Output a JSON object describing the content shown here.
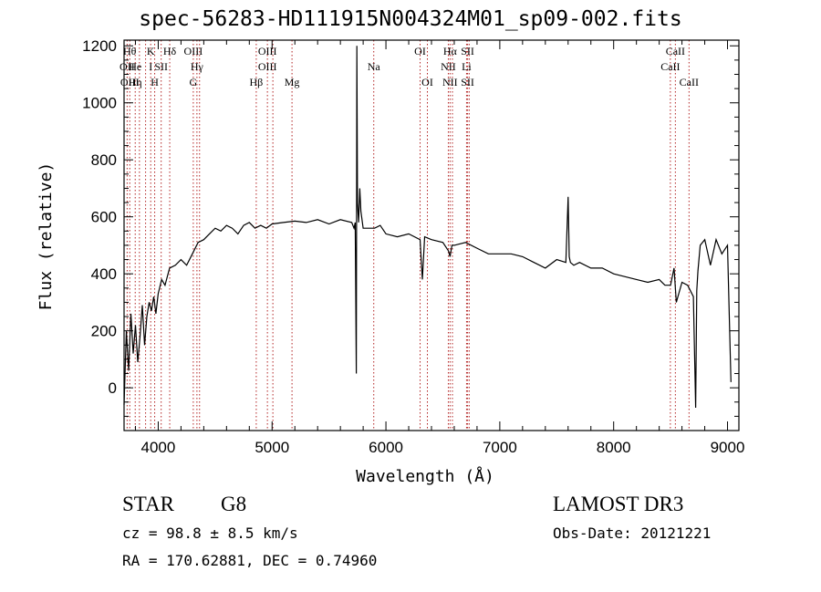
{
  "chart_data": {
    "type": "line",
    "title": "spec-56283-HD111915N004324M01_sp09-002.fits",
    "xlabel": "Wavelength (Å)",
    "ylabel": "Flux (relative)",
    "xlim": [
      3700,
      9100
    ],
    "ylim": [
      -150,
      1220
    ],
    "xticks": [
      "4000",
      "5000",
      "6000",
      "7000",
      "8000",
      "9000"
    ],
    "xtick_values": [
      4000,
      5000,
      6000,
      7000,
      8000,
      9000
    ],
    "yticks": [
      "0",
      "200",
      "400",
      "600",
      "800",
      "1000",
      "1200"
    ],
    "ytick_values": [
      0,
      200,
      400,
      600,
      800,
      1000,
      1200
    ],
    "grid": false,
    "line_color": "#000000",
    "marker_color": "#b22222",
    "series": [
      {
        "x": [
          3700,
          3720,
          3740,
          3760,
          3780,
          3800,
          3820,
          3840,
          3860,
          3880,
          3900,
          3920,
          3940,
          3960,
          3980,
          4000,
          4030,
          4060,
          4100,
          4150,
          4200,
          4250,
          4300,
          4350,
          4400,
          4450,
          4500,
          4550,
          4600,
          4650,
          4700,
          4750,
          4800,
          4850,
          4900,
          4950,
          5000,
          5100,
          5200,
          5300,
          5400,
          5500,
          5600,
          5700,
          5720,
          5730,
          5740,
          5745,
          5750,
          5760,
          5770,
          5780,
          5800,
          5850,
          5900,
          5950,
          6000,
          6100,
          6200,
          6300,
          6320,
          6340,
          6400,
          6500,
          6550,
          6563,
          6580,
          6600,
          6700,
          6800,
          6900,
          7000,
          7100,
          7200,
          7300,
          7400,
          7500,
          7580,
          7600,
          7610,
          7620,
          7650,
          7700,
          7800,
          7900,
          8000,
          8100,
          8200,
          8300,
          8400,
          8450,
          8500,
          8530,
          8550,
          8600,
          8650,
          8700,
          8720,
          8730,
          8740,
          8760,
          8800,
          8850,
          8900,
          8950,
          9000,
          9030
        ],
        "values": [
          -60,
          200,
          60,
          260,
          120,
          220,
          90,
          180,
          290,
          150,
          250,
          300,
          270,
          320,
          260,
          330,
          380,
          360,
          420,
          430,
          450,
          430,
          470,
          510,
          520,
          540,
          560,
          550,
          570,
          560,
          540,
          570,
          580,
          560,
          570,
          560,
          575,
          580,
          585,
          580,
          590,
          575,
          590,
          580,
          560,
          580,
          50,
          1200,
          650,
          580,
          700,
          620,
          560,
          560,
          560,
          570,
          540,
          530,
          540,
          520,
          380,
          530,
          520,
          510,
          480,
          460,
          500,
          500,
          510,
          490,
          470,
          470,
          470,
          460,
          440,
          420,
          450,
          440,
          670,
          460,
          440,
          430,
          440,
          420,
          420,
          400,
          390,
          380,
          370,
          380,
          360,
          360,
          420,
          300,
          370,
          360,
          320,
          -70,
          340,
          410,
          500,
          520,
          430,
          520,
          470,
          500,
          20
        ]
      }
    ],
    "lines": [
      {
        "w": 3727,
        "labels": [
          "OII"
        ],
        "rows": [
          1
        ]
      },
      {
        "w": 3750,
        "labels": [
          "Hθ",
          "OIII"
        ],
        "rows": [
          0,
          2
        ]
      },
      {
        "w": 3798,
        "labels": [
          "He",
          "Hη"
        ],
        "rows": [
          1,
          2
        ]
      },
      {
        "w": 3835,
        "labels": [],
        "rows": []
      },
      {
        "w": 3889,
        "labels": [],
        "rows": []
      },
      {
        "w": 3934,
        "labels": [
          "K",
          "I"
        ],
        "rows": [
          0,
          1
        ]
      },
      {
        "w": 3969,
        "labels": [
          "H"
        ],
        "rows": [
          2
        ]
      },
      {
        "w": 4026,
        "labels": [
          "SII"
        ],
        "rows": [
          1
        ]
      },
      {
        "w": 4101,
        "labels": [
          "Hδ"
        ],
        "rows": [
          0
        ]
      },
      {
        "w": 4308,
        "labels": [
          "OIII",
          "G"
        ],
        "rows": [
          0,
          2
        ]
      },
      {
        "w": 4340,
        "labels": [
          "Hγ"
        ],
        "rows": [
          1
        ]
      },
      {
        "w": 4363,
        "labels": [],
        "rows": []
      },
      {
        "w": 4861,
        "labels": [
          "Hβ"
        ],
        "rows": [
          2
        ]
      },
      {
        "w": 4959,
        "labels": [
          "OIII",
          "OIII"
        ],
        "rows": [
          0,
          1
        ]
      },
      {
        "w": 5007,
        "labels": [],
        "rows": []
      },
      {
        "w": 5175,
        "labels": [
          "Mg"
        ],
        "rows": [
          2
        ]
      },
      {
        "w": 5893,
        "labels": [
          "Na"
        ],
        "rows": [
          1
        ]
      },
      {
        "w": 6300,
        "labels": [
          "OI"
        ],
        "rows": [
          0
        ]
      },
      {
        "w": 6364,
        "labels": [
          "OI"
        ],
        "rows": [
          2
        ]
      },
      {
        "w": 6548,
        "labels": [
          "NII"
        ],
        "rows": [
          1
        ]
      },
      {
        "w": 6563,
        "labels": [
          "Hα",
          "NII"
        ],
        "rows": [
          0,
          2
        ]
      },
      {
        "w": 6584,
        "labels": [],
        "rows": []
      },
      {
        "w": 6708,
        "labels": [
          "Li"
        ],
        "rows": [
          1
        ]
      },
      {
        "w": 6717,
        "labels": [
          "SII",
          "SII"
        ],
        "rows": [
          0,
          2
        ]
      },
      {
        "w": 6731,
        "labels": [],
        "rows": []
      },
      {
        "w": 8498,
        "labels": [
          "CaII"
        ],
        "rows": [
          1
        ]
      },
      {
        "w": 8542,
        "labels": [
          "CaII"
        ],
        "rows": [
          0
        ]
      },
      {
        "w": 8662,
        "labels": [
          "CaII"
        ],
        "rows": [
          2
        ]
      }
    ]
  },
  "info": {
    "object_class": "STAR",
    "subclass": "G8",
    "survey": "LAMOST DR3",
    "cz": "cz = 98.8 ± 8.5 km/s",
    "obs_date": "Obs-Date: 20121221",
    "coords": "RA = 170.62881, DEC =    0.74960"
  }
}
